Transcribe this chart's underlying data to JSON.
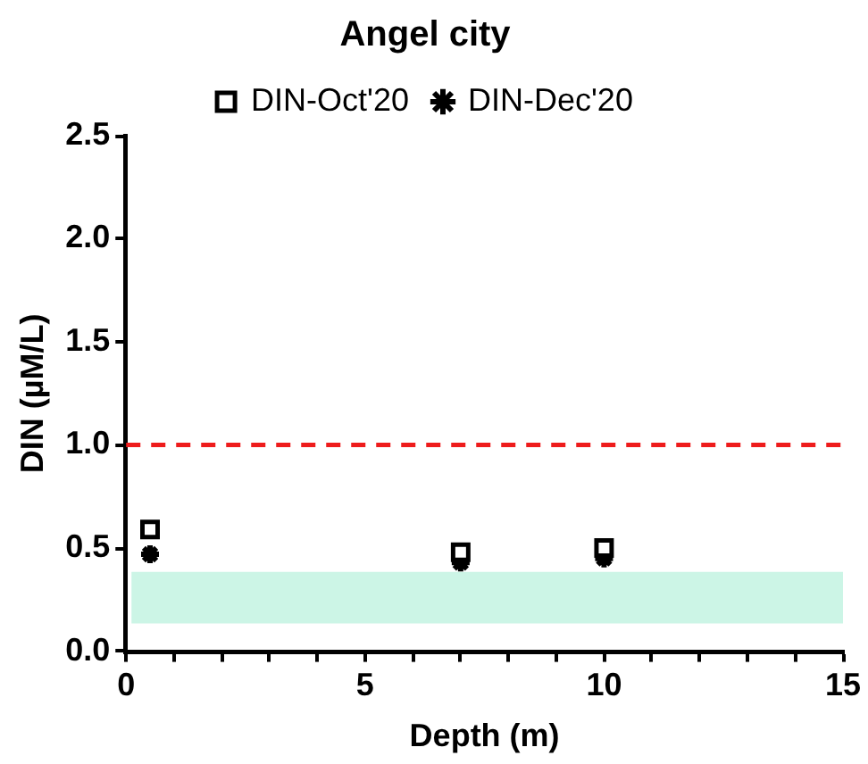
{
  "chart_data": {
    "type": "scatter",
    "title": "Angel city",
    "xlabel": "Depth (m)",
    "ylabel": "DIN (µM/L)",
    "xlim": [
      0,
      15
    ],
    "xticks": [
      0,
      {
        "value": 1,
        "label": null
      },
      {
        "value": 2,
        "label": null
      },
      {
        "value": 3,
        "label": null
      },
      {
        "value": 4,
        "label": null
      },
      5,
      {
        "value": 6,
        "label": null
      },
      {
        "value": 7,
        "label": null
      },
      {
        "value": 8,
        "label": null
      },
      {
        "value": 9,
        "label": null
      },
      10,
      {
        "value": 11,
        "label": null
      },
      {
        "value": 12,
        "label": null
      },
      {
        "value": 13,
        "label": null
      },
      {
        "value": 14,
        "label": null
      },
      15
    ],
    "ylim": [
      0,
      2.5
    ],
    "yticks": [
      {
        "value": 0,
        "label": "0.0"
      },
      0.5,
      {
        "value": 1,
        "label": "1.0"
      },
      1.5,
      {
        "value": 2,
        "label": "2.0"
      },
      2.5
    ],
    "x": [
      0.5,
      7,
      10
    ],
    "series": [
      {
        "name": "DIN-Oct'20",
        "color": "#000000",
        "marker": "square",
        "values": [
          0.59,
          0.48,
          0.5
        ]
      },
      {
        "name": "DIN-Dec'20",
        "color": "#000000",
        "marker": "cross",
        "values": [
          0.47,
          0.43,
          0.45
        ]
      }
    ],
    "ref_lines": [
      {
        "axis": "y",
        "value": 1,
        "color": "#ee1c1c",
        "line_style": "dashed"
      }
    ],
    "bands": [
      {
        "axis": "y",
        "from": 0.135,
        "to": 0.385,
        "color": "#ccf5e6"
      }
    ],
    "grid": false,
    "legend": "top"
  }
}
